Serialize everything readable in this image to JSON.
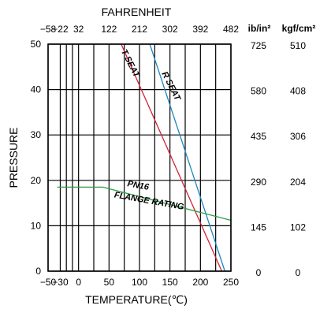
{
  "chart_data": {
    "type": "line",
    "title": "",
    "xlabel": "TEMPERATURE(℃)",
    "ylabel": "PRESSURE",
    "top_axis_label": "FAHRENHEIT",
    "xlim": [
      -50,
      250
    ],
    "ylim": [
      0,
      50
    ],
    "x_ticks": [
      -50,
      -30,
      0,
      50,
      100,
      150,
      200,
      250
    ],
    "x_tick_labels": [
      "−50",
      "−30",
      "0",
      "50",
      "100",
      "150",
      "200",
      "250"
    ],
    "y_ticks": [
      0,
      10,
      20,
      30,
      40,
      50
    ],
    "y_tick_labels": [
      "0",
      "10",
      "20",
      "30",
      "40",
      "50"
    ],
    "fahrenheit_ticks": [
      {
        "c": -50,
        "label": "−58"
      },
      {
        "c": -30,
        "label": "−22"
      },
      {
        "c": 0,
        "label": "32"
      },
      {
        "c": 50,
        "label": "122"
      },
      {
        "c": 100,
        "label": "212"
      },
      {
        "c": 150,
        "label": "302"
      },
      {
        "c": 200,
        "label": "392"
      },
      {
        "c": 250,
        "label": "482"
      }
    ],
    "vertical_gridlines": [
      -50,
      -30,
      -20,
      -10,
      0,
      25,
      50,
      75,
      100,
      125,
      150,
      175,
      200,
      225,
      250
    ],
    "grid": true,
    "right_units": {
      "psi_header": "ib/in²",
      "kgf_header": "kgf/cm²",
      "rows": [
        {
          "y": 50,
          "psi": "725",
          "kgf": "510"
        },
        {
          "y": 40,
          "psi": "580",
          "kgf": "408"
        },
        {
          "y": 30,
          "psi": "435",
          "kgf": "306"
        },
        {
          "y": 20,
          "psi": "290",
          "kgf": "204"
        },
        {
          "y": 10,
          "psi": "145",
          "kgf": "102"
        },
        {
          "y": 0,
          "psi": "0",
          "kgf": "0"
        }
      ]
    },
    "series": [
      {
        "label": "T SEAT",
        "color": "#d1233a",
        "points": [
          [
            70,
            50
          ],
          [
            235,
            0
          ]
        ]
      },
      {
        "label": "R SEAT",
        "color": "#1f86c0",
        "points": [
          [
            117,
            50
          ],
          [
            240,
            0
          ]
        ]
      },
      {
        "label": "PN16",
        "label2": "FLANGE RATING",
        "color": "#2c9a3f",
        "points": [
          [
            -35,
            18.5
          ],
          [
            40,
            18.5
          ],
          [
            250,
            11.2
          ]
        ]
      }
    ],
    "annotations": [
      {
        "text": "T SEAT",
        "x": 81,
        "y": 45.5,
        "angle": 63
      },
      {
        "text": "R SEAT",
        "x": 148,
        "y": 40.5,
        "angle": 63
      },
      {
        "text": "PN16",
        "x": 97,
        "y": 18.3,
        "angle": 10
      },
      {
        "text": "FLANGE RATING",
        "x": 115,
        "y": 14.9,
        "angle": 10
      }
    ]
  }
}
